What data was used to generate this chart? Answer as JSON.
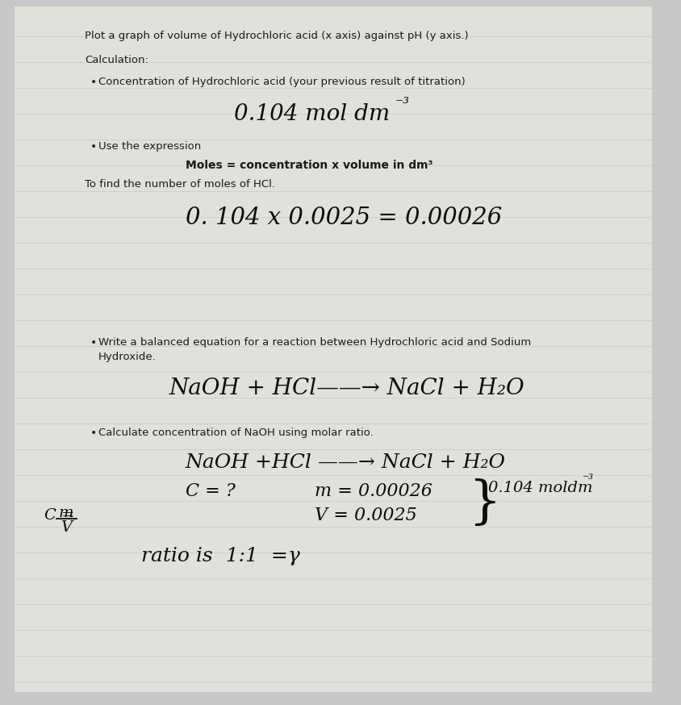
{
  "bg_outer": "#c8c8c8",
  "bg_page": "#e8e6e2",
  "bg_page2": "#dddbd6",
  "line_color": "#b8bcc8",
  "text_color": "#1a1a1a",
  "handwrite_color": "#111111",
  "title": "Plot a graph of volume of Hydrochloric acid (x axis) against pH (y axis.)",
  "calc_label": "Calculation:",
  "bullet1": "Concentration of Hydrochloric acid (your previous result of titration)",
  "conc_hand": "0.104 mol dm",
  "conc_sup": "⁻³",
  "bullet2": "Use the expression",
  "expr_bold": "Moles = concentration x volume in dm³",
  "find_moles": "To find the number of moles of HCl.",
  "calc_hand": "0. 104 x 0.0025 = 0.00026",
  "bullet3_1": "Write a balanced equation for a reaction between Hydrochloric acid and Sodium",
  "bullet3_2": "Hydroxide.",
  "eq1_hand": "NaOH + HCl—→ NaCl + H₂O",
  "bullet4": "Calculate concentration of NaOH using molar ratio.",
  "eq2_hand": "NaOH +HCl ——→ NaCl + H₂O",
  "c_eq": "C = ?",
  "m_eq": "m = 0.00026",
  "v_eq": "V = 0.0025",
  "brace_conc": "0.104 moldm⁻³",
  "c_formula_top": "m",
  "c_formula_bot": "V",
  "ratio": "ratio is  1:1  =γ"
}
